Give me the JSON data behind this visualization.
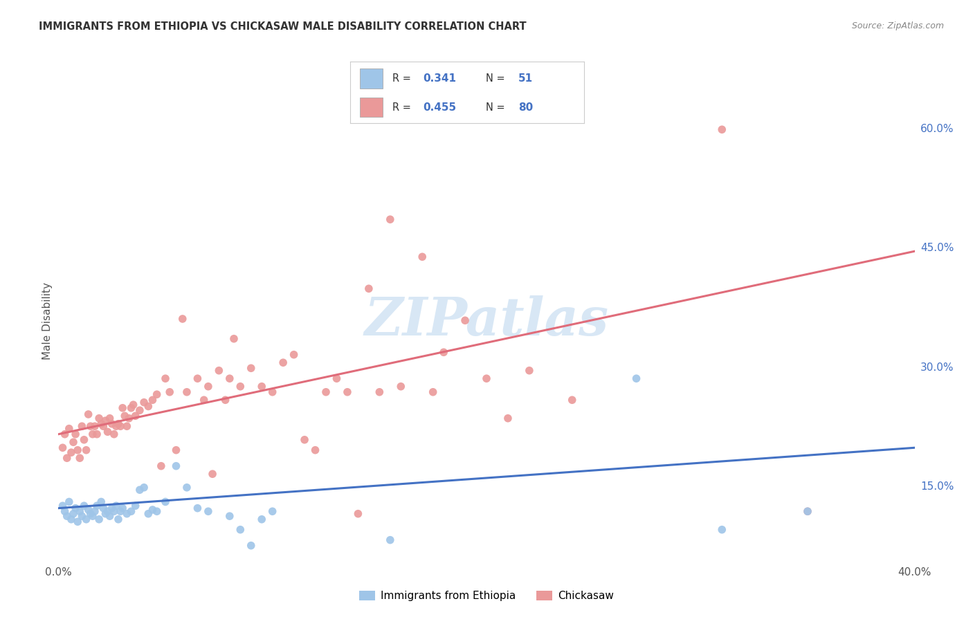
{
  "title": "IMMIGRANTS FROM ETHIOPIA VS CHICKASAW MALE DISABILITY CORRELATION CHART",
  "source": "Source: ZipAtlas.com",
  "ylabel": "Male Disability",
  "ytick_labels": [
    "15.0%",
    "30.0%",
    "45.0%",
    "60.0%"
  ],
  "ytick_values": [
    0.15,
    0.3,
    0.45,
    0.6
  ],
  "xrange": [
    0.0,
    0.4
  ],
  "yrange": [
    0.055,
    0.66
  ],
  "watermark": "ZIPatlas",
  "legend_blue_r": "0.341",
  "legend_blue_n": "51",
  "legend_pink_r": "0.455",
  "legend_pink_n": "80",
  "blue_color": "#9fc5e8",
  "pink_color": "#ea9999",
  "blue_line_color": "#4472c4",
  "pink_line_color": "#e06c7a",
  "legend_text_color": "#4472c4",
  "blue_scatter": [
    [
      0.002,
      0.125
    ],
    [
      0.003,
      0.118
    ],
    [
      0.004,
      0.112
    ],
    [
      0.005,
      0.13
    ],
    [
      0.006,
      0.108
    ],
    [
      0.007,
      0.115
    ],
    [
      0.008,
      0.122
    ],
    [
      0.009,
      0.105
    ],
    [
      0.01,
      0.118
    ],
    [
      0.011,
      0.112
    ],
    [
      0.012,
      0.125
    ],
    [
      0.013,
      0.108
    ],
    [
      0.014,
      0.12
    ],
    [
      0.015,
      0.115
    ],
    [
      0.016,
      0.112
    ],
    [
      0.017,
      0.118
    ],
    [
      0.018,
      0.125
    ],
    [
      0.019,
      0.108
    ],
    [
      0.02,
      0.13
    ],
    [
      0.021,
      0.122
    ],
    [
      0.022,
      0.115
    ],
    [
      0.023,
      0.118
    ],
    [
      0.024,
      0.112
    ],
    [
      0.025,
      0.122
    ],
    [
      0.026,
      0.118
    ],
    [
      0.027,
      0.125
    ],
    [
      0.028,
      0.108
    ],
    [
      0.029,
      0.118
    ],
    [
      0.03,
      0.122
    ],
    [
      0.032,
      0.115
    ],
    [
      0.034,
      0.118
    ],
    [
      0.036,
      0.125
    ],
    [
      0.038,
      0.145
    ],
    [
      0.04,
      0.148
    ],
    [
      0.042,
      0.115
    ],
    [
      0.044,
      0.12
    ],
    [
      0.046,
      0.118
    ],
    [
      0.05,
      0.13
    ],
    [
      0.055,
      0.175
    ],
    [
      0.06,
      0.148
    ],
    [
      0.065,
      0.122
    ],
    [
      0.07,
      0.118
    ],
    [
      0.08,
      0.112
    ],
    [
      0.085,
      0.095
    ],
    [
      0.09,
      0.075
    ],
    [
      0.095,
      0.108
    ],
    [
      0.1,
      0.118
    ],
    [
      0.155,
      0.082
    ],
    [
      0.27,
      0.285
    ],
    [
      0.31,
      0.095
    ],
    [
      0.35,
      0.118
    ]
  ],
  "pink_scatter": [
    [
      0.002,
      0.198
    ],
    [
      0.003,
      0.215
    ],
    [
      0.004,
      0.185
    ],
    [
      0.005,
      0.222
    ],
    [
      0.006,
      0.192
    ],
    [
      0.007,
      0.205
    ],
    [
      0.008,
      0.215
    ],
    [
      0.009,
      0.195
    ],
    [
      0.01,
      0.185
    ],
    [
      0.011,
      0.225
    ],
    [
      0.012,
      0.208
    ],
    [
      0.013,
      0.195
    ],
    [
      0.014,
      0.24
    ],
    [
      0.015,
      0.225
    ],
    [
      0.016,
      0.215
    ],
    [
      0.017,
      0.225
    ],
    [
      0.018,
      0.215
    ],
    [
      0.019,
      0.235
    ],
    [
      0.02,
      0.228
    ],
    [
      0.021,
      0.225
    ],
    [
      0.022,
      0.232
    ],
    [
      0.023,
      0.218
    ],
    [
      0.024,
      0.235
    ],
    [
      0.025,
      0.228
    ],
    [
      0.026,
      0.215
    ],
    [
      0.027,
      0.225
    ],
    [
      0.028,
      0.228
    ],
    [
      0.029,
      0.225
    ],
    [
      0.03,
      0.248
    ],
    [
      0.031,
      0.238
    ],
    [
      0.032,
      0.225
    ],
    [
      0.033,
      0.235
    ],
    [
      0.034,
      0.248
    ],
    [
      0.035,
      0.252
    ],
    [
      0.036,
      0.238
    ],
    [
      0.038,
      0.245
    ],
    [
      0.04,
      0.255
    ],
    [
      0.042,
      0.25
    ],
    [
      0.044,
      0.258
    ],
    [
      0.046,
      0.265
    ],
    [
      0.048,
      0.175
    ],
    [
      0.05,
      0.285
    ],
    [
      0.052,
      0.268
    ],
    [
      0.055,
      0.195
    ],
    [
      0.058,
      0.36
    ],
    [
      0.06,
      0.268
    ],
    [
      0.065,
      0.285
    ],
    [
      0.068,
      0.258
    ],
    [
      0.07,
      0.275
    ],
    [
      0.072,
      0.165
    ],
    [
      0.075,
      0.295
    ],
    [
      0.078,
      0.258
    ],
    [
      0.08,
      0.285
    ],
    [
      0.082,
      0.335
    ],
    [
      0.085,
      0.275
    ],
    [
      0.09,
      0.298
    ],
    [
      0.095,
      0.275
    ],
    [
      0.1,
      0.268
    ],
    [
      0.105,
      0.305
    ],
    [
      0.11,
      0.315
    ],
    [
      0.115,
      0.208
    ],
    [
      0.12,
      0.195
    ],
    [
      0.125,
      0.268
    ],
    [
      0.13,
      0.285
    ],
    [
      0.135,
      0.268
    ],
    [
      0.14,
      0.115
    ],
    [
      0.145,
      0.398
    ],
    [
      0.15,
      0.268
    ],
    [
      0.155,
      0.485
    ],
    [
      0.16,
      0.275
    ],
    [
      0.17,
      0.438
    ],
    [
      0.175,
      0.268
    ],
    [
      0.18,
      0.318
    ],
    [
      0.19,
      0.358
    ],
    [
      0.2,
      0.285
    ],
    [
      0.21,
      0.235
    ],
    [
      0.22,
      0.295
    ],
    [
      0.24,
      0.258
    ],
    [
      0.31,
      0.598
    ],
    [
      0.35,
      0.118
    ]
  ],
  "blue_line": {
    "x0": 0.0,
    "y0": 0.122,
    "x1": 0.4,
    "y1": 0.198
  },
  "pink_line": {
    "x0": 0.0,
    "y0": 0.215,
    "x1": 0.4,
    "y1": 0.445
  },
  "bottom_legend": [
    "Immigrants from Ethiopia",
    "Chickasaw"
  ],
  "grid_color": "#cccccc",
  "grid_linestyle": "--",
  "xtick_left": "0.0%",
  "xtick_right": "40.0%"
}
